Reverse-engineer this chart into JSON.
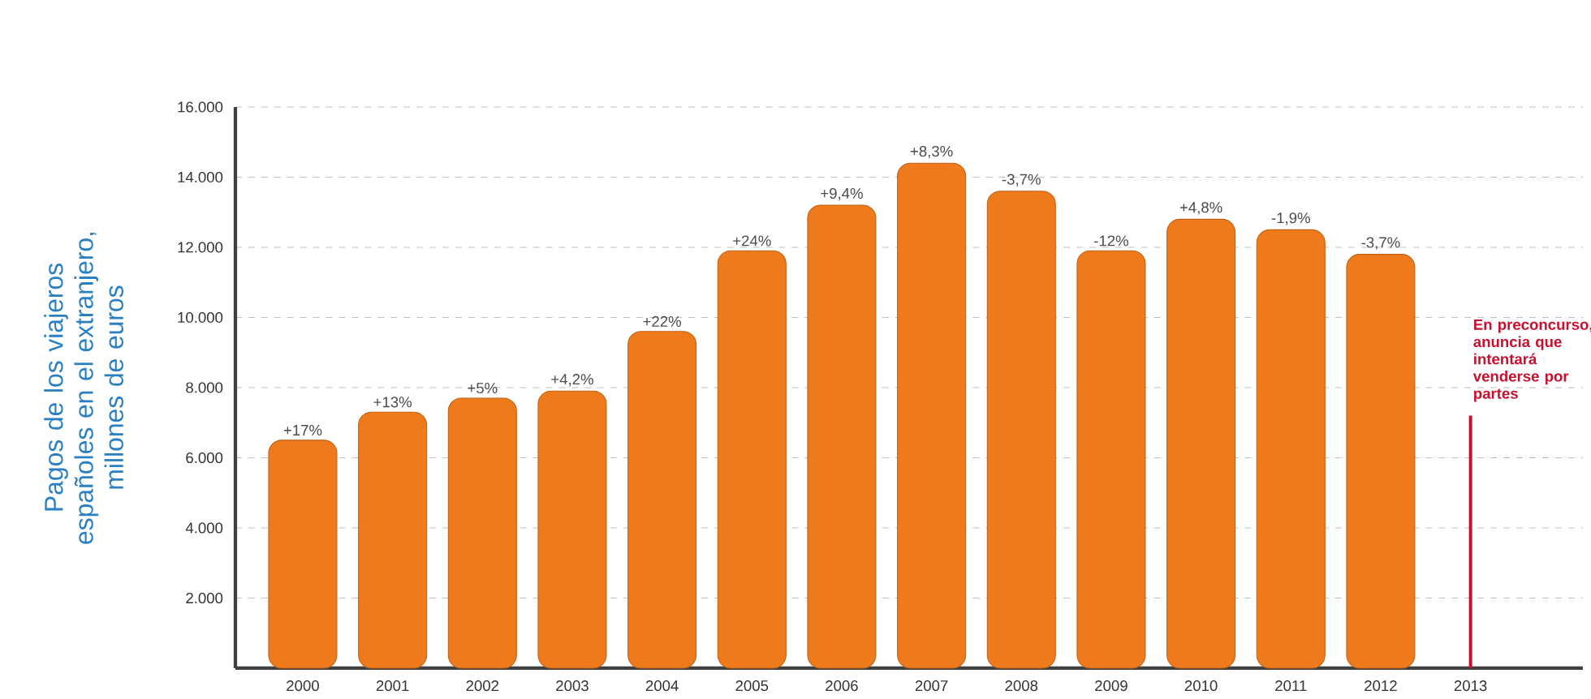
{
  "chart_data": {
    "type": "bar",
    "ylabel": "Pagos de los viajeros españoles en el extranjero, millones de euros",
    "categories": [
      "2000",
      "2001",
      "2002",
      "2003",
      "2004",
      "2005",
      "2006",
      "2007",
      "2008",
      "2009",
      "2010",
      "2011",
      "2012",
      "2013"
    ],
    "values": [
      6500,
      7300,
      7700,
      7900,
      9600,
      11900,
      13200,
      14400,
      13600,
      11900,
      12800,
      12500,
      11800,
      null
    ],
    "color": "#ee7a1c",
    "ylim": [
      0,
      16000
    ],
    "yticks": [
      {
        "value": 2000,
        "label": "2.000"
      },
      {
        "value": 4000,
        "label": "4.000"
      },
      {
        "value": 6000,
        "label": "6.000"
      },
      {
        "value": 8000,
        "label": "8.000"
      },
      {
        "value": 10000,
        "label": "10.000"
      },
      {
        "value": 12000,
        "label": "12.000"
      },
      {
        "value": 14000,
        "label": "14.000"
      },
      {
        "value": 16000,
        "label": "16.000"
      }
    ],
    "grid": "y",
    "ref_lines": [
      {
        "axis": "x",
        "value": "2013",
        "label": "En preconcurso, anuncia que intentará venderse por partes",
        "color": "#c8102e"
      }
    ],
    "annotations": [
      {
        "text": "+17%",
        "x": "2000",
        "y": 6500
      },
      {
        "text": "+13%",
        "x": "2001",
        "y": 7300
      },
      {
        "text": "+5%",
        "x": "2002",
        "y": 7700
      },
      {
        "text": "+4,2%",
        "x": "2003",
        "y": 7900
      },
      {
        "text": "+22%",
        "x": "2004",
        "y": 9600
      },
      {
        "text": "+24%",
        "x": "2005",
        "y": 11900
      },
      {
        "text": "+9,4%",
        "x": "2006",
        "y": 13200
      },
      {
        "text": "+8,3%",
        "x": "2007",
        "y": 14400
      },
      {
        "text": "-3,7%",
        "x": "2008",
        "y": 13600
      },
      {
        "text": "-12%",
        "x": "2009",
        "y": 11900
      },
      {
        "text": "+4,8%",
        "x": "2010",
        "y": 12800
      },
      {
        "text": "-1,9%",
        "x": "2011",
        "y": 12500
      },
      {
        "text": "-3,7%",
        "x": "2012",
        "y": 11800
      }
    ]
  }
}
